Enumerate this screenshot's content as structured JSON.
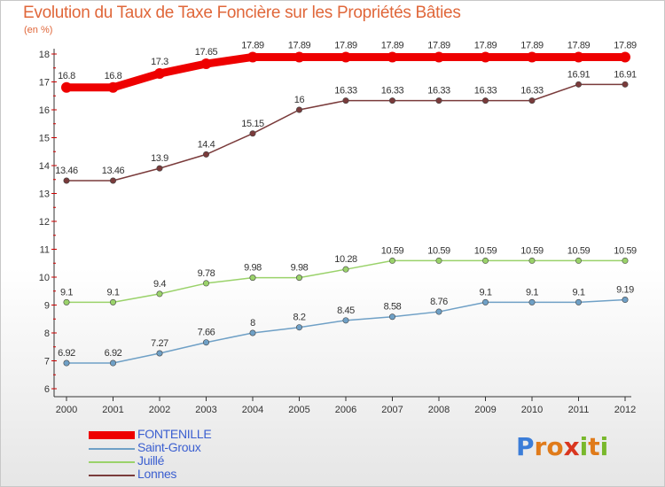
{
  "header": {
    "title": "Evolution du Taux de Taxe Foncière sur les Propriétés Bâties",
    "subtitle": "(en %)"
  },
  "logo": {
    "text": "Proxiti",
    "letter_colors": [
      "#3b7dd8",
      "#e07b1a",
      "#e07b1a",
      "#d9361f",
      "#79b82c",
      "#e07b1a",
      "#79b82c"
    ]
  },
  "chart_data": {
    "type": "line",
    "title": "Evolution du Taux de Taxe Foncière sur les Propriétés Bâties",
    "subtitle": "(en %)",
    "xlabel": "",
    "ylabel": "(en %)",
    "x": [
      "2000",
      "2001",
      "2002",
      "2003",
      "2004",
      "2005",
      "2006",
      "2007",
      "2008",
      "2009",
      "2010",
      "2011",
      "2012"
    ],
    "ylim": [
      6,
      18
    ],
    "yticks": [
      "6",
      "7",
      "8",
      "9",
      "10",
      "11",
      "12",
      "13",
      "14",
      "15",
      "16",
      "17",
      "18"
    ],
    "grid": false,
    "legend_position": "bottom-left",
    "series": [
      {
        "name": "FONTENILLE",
        "color": "#ee0000",
        "values": [
          16.8,
          16.8,
          17.3,
          17.65,
          17.89,
          17.89,
          17.89,
          17.89,
          17.89,
          17.89,
          17.89,
          17.89,
          17.89
        ],
        "labels": [
          "16.8",
          "16.8",
          "17.3",
          "17.65",
          "17.89",
          "17.89",
          "17.89",
          "17.89",
          "17.89",
          "17.89",
          "17.89",
          "17.89",
          "17.89"
        ]
      },
      {
        "name": "Saint-Groux",
        "color": "#6fa0c6",
        "values": [
          6.92,
          6.92,
          7.27,
          7.66,
          8,
          8.2,
          8.45,
          8.58,
          8.76,
          9.1,
          9.1,
          9.1,
          9.19
        ],
        "labels": [
          "6.92",
          "6.92",
          "7.27",
          "7.66",
          "8",
          "8.2",
          "8.45",
          "8.58",
          "8.76",
          "9.1",
          "9.1",
          "9.1",
          "9.19"
        ]
      },
      {
        "name": "Juillé",
        "color": "#9ad26a",
        "values": [
          9.1,
          9.1,
          9.4,
          9.78,
          9.98,
          9.98,
          10.28,
          10.59,
          10.59,
          10.59,
          10.59,
          10.59,
          10.59
        ],
        "labels": [
          "9.1",
          "9.1",
          "9.4",
          "9.78",
          "9.98",
          "9.98",
          "10.28",
          "10.59",
          "10.59",
          "10.59",
          "10.59",
          "10.59",
          "10.59"
        ]
      },
      {
        "name": "Lonnes",
        "color": "#7a3b3b",
        "values": [
          13.46,
          13.46,
          13.9,
          14.4,
          15.15,
          16,
          16.33,
          16.33,
          16.33,
          16.33,
          16.33,
          16.91,
          16.91
        ],
        "labels": [
          "13.46",
          "13.46",
          "13.9",
          "14.4",
          "15.15",
          "16",
          "16.33",
          "16.33",
          "16.33",
          "16.33",
          "16.33",
          "16.91",
          "16.91"
        ]
      }
    ]
  }
}
